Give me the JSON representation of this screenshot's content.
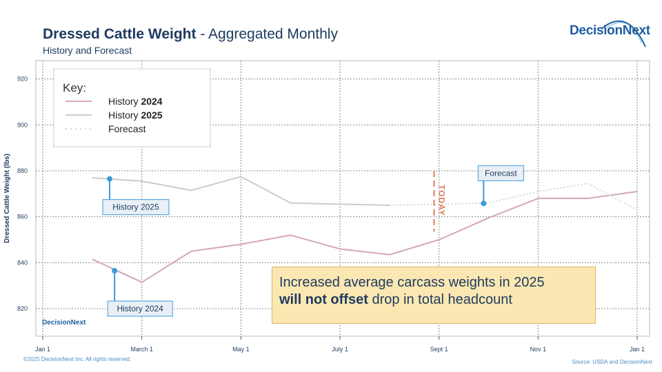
{
  "header": {
    "title_bold": "Dressed Cattle Weight",
    "title_rest": " - Aggregated Monthly",
    "subtitle": "History and Forecast"
  },
  "brand": {
    "logo": "DecisionNext",
    "logo_small": "DecisionNext",
    "logo_icon": "arc-swoosh-icon"
  },
  "footer": {
    "copyright": "©2025 DecisionNext Inc. All rights reserved.",
    "source": "Source: USDA and DecisionNext"
  },
  "callout": {
    "line1": "Increased average carcass weights in 2025",
    "bold": "will not offset",
    "rest": " drop in total headcount"
  },
  "colors": {
    "h2024": "#d2a6bb",
    "h2025": "#cccccc",
    "forecast": "#c9d8e4",
    "today": "#e07a5f",
    "marker": "#3a9ad9",
    "label_bg": "#e9eff5",
    "text": "#1d3a5f"
  },
  "chart_data": {
    "type": "line",
    "title": "Dressed Cattle Weight - Aggregated Monthly",
    "subtitle": "History and Forecast",
    "ylabel": "Dressed Cattle Weight (lbs)",
    "xlabel": "",
    "ylim": [
      808,
      928
    ],
    "yticks": [
      820,
      840,
      860,
      880,
      900,
      920
    ],
    "x_domain_months": [
      0,
      12
    ],
    "xticks": [
      {
        "month": 0,
        "label": "Jan 1"
      },
      {
        "month": 2,
        "label": "March 1"
      },
      {
        "month": 4,
        "label": "May 1"
      },
      {
        "month": 6,
        "label": "July 1"
      },
      {
        "month": 8,
        "label": "Sept 1"
      },
      {
        "month": 10,
        "label": "Nov 1"
      },
      {
        "month": 12,
        "label": "Jan 1"
      }
    ],
    "grid": true,
    "legend": {
      "title": "Key:",
      "position": "top-left",
      "entries": [
        {
          "series": "History 2024",
          "label": "History ",
          "bold": "2024"
        },
        {
          "series": "History 2025",
          "label": "History ",
          "bold": "2025"
        },
        {
          "series": "Forecast",
          "label": "Forecast",
          "bold": ""
        }
      ]
    },
    "series": [
      {
        "name": "History 2024",
        "x": [
          1,
          2,
          3,
          4,
          5,
          6,
          7,
          8,
          9,
          10,
          11,
          12
        ],
        "values": [
          841.5,
          831.5,
          845,
          848,
          852,
          846,
          843.5,
          850,
          859.5,
          868,
          868,
          871
        ]
      },
      {
        "name": "History 2025",
        "x": [
          1,
          2,
          3,
          4,
          5,
          6,
          7
        ],
        "values": [
          877,
          875.5,
          871.5,
          877.5,
          866,
          865.5,
          865
        ]
      },
      {
        "name": "Forecast",
        "x": [
          7,
          8,
          9,
          10,
          11,
          12
        ],
        "values": [
          865,
          865.5,
          866,
          871,
          874.5,
          863
        ]
      }
    ],
    "today": {
      "month": 7.9,
      "label": "TODAY"
    },
    "annotations": [
      {
        "text": "History 2025",
        "series": "History 2025",
        "x": 1.35,
        "y": 876.5
      },
      {
        "text": "History 2024",
        "series": "History 2024",
        "x": 1.45,
        "y": 836.5
      },
      {
        "text": "Forecast",
        "series": "Forecast",
        "x": 8.9,
        "y": 865.8
      }
    ]
  }
}
